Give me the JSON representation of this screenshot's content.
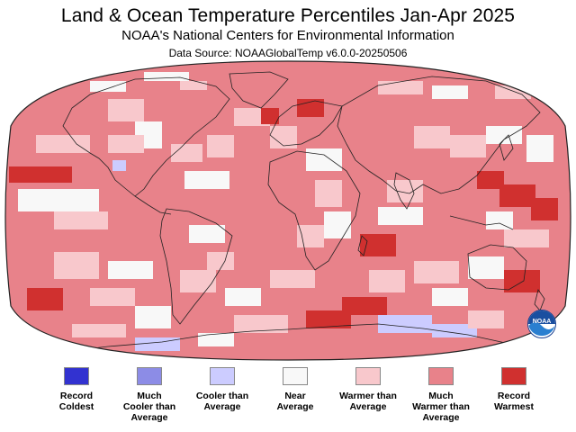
{
  "header": {
    "title": "Land & Ocean Temperature Percentiles Jan-Apr 2025",
    "subtitle": "NOAA's National Centers for Environmental Information",
    "source": "Data Source: NOAAGlobalTemp v6.0.0-20250506"
  },
  "colors": {
    "record_coldest": "#3232d0",
    "much_cooler": "#8c8ce6",
    "cooler": "#ccccff",
    "near": "#f8f8f8",
    "warmer": "#f8c8cc",
    "much_warmer": "#e8828a",
    "record_warmest": "#d0302f",
    "ocean_base": "#e8828a",
    "land_outline": "#222222"
  },
  "legend": {
    "items": [
      {
        "lines": [
          "Record",
          "Coldest"
        ],
        "color": "#3232d0"
      },
      {
        "lines": [
          "Much",
          "Cooler than",
          "Average"
        ],
        "color": "#8c8ce6"
      },
      {
        "lines": [
          "Cooler than",
          "Average"
        ],
        "color": "#ccccff"
      },
      {
        "lines": [
          "Near",
          "Average"
        ],
        "color": "#f8f8f8"
      },
      {
        "lines": [
          "Warmer than",
          "Average"
        ],
        "color": "#f8c8cc"
      },
      {
        "lines": [
          "Much",
          "Warmer than",
          "Average"
        ],
        "color": "#e8828a"
      },
      {
        "lines": [
          "Record",
          "Warmest"
        ],
        "color": "#d0302f"
      }
    ]
  },
  "logo": {
    "text": "NOAA",
    "icon": "noaa-logo-icon"
  }
}
